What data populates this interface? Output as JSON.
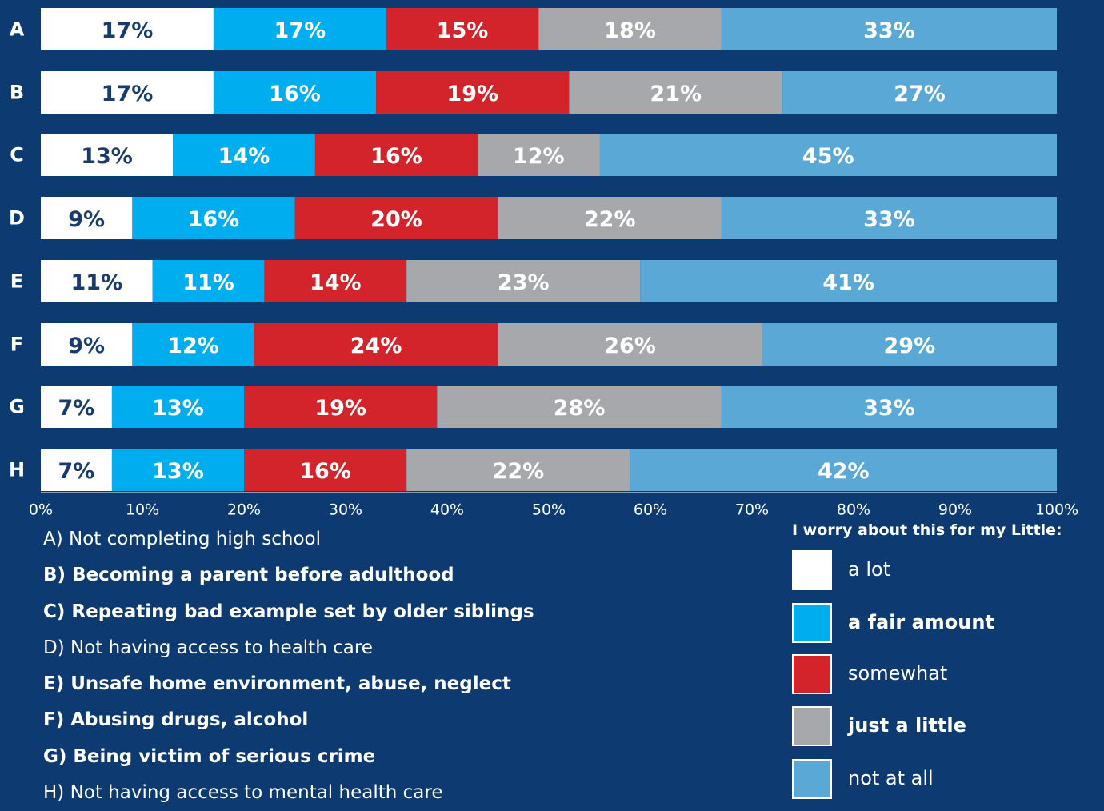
{
  "chart_data": {
    "type": "bar",
    "orientation": "horizontal",
    "stacked": true,
    "categories": [
      "A",
      "B",
      "C",
      "D",
      "E",
      "F",
      "G",
      "H"
    ],
    "series": [
      {
        "name": "a lot",
        "color": "#ffffff",
        "label_color": "#1a3b6e",
        "values": [
          17,
          17,
          13,
          9,
          11,
          9,
          7,
          7
        ]
      },
      {
        "name": "a fair amount",
        "color": "#00adef",
        "label_color": "#ffffff",
        "values": [
          17,
          16,
          14,
          16,
          11,
          12,
          13,
          13
        ]
      },
      {
        "name": "somewhat",
        "color": "#d3242b",
        "label_color": "#ffffff",
        "values": [
          15,
          19,
          16,
          20,
          14,
          24,
          19,
          16
        ]
      },
      {
        "name": "just a little",
        "color": "#a6a8ab",
        "label_color": "#ffffff",
        "values": [
          18,
          21,
          12,
          22,
          23,
          26,
          28,
          22
        ]
      },
      {
        "name": "not at all",
        "color": "#5aa8d6",
        "label_color": "#ffffff",
        "values": [
          33,
          27,
          45,
          33,
          41,
          29,
          33,
          42
        ]
      }
    ],
    "x_ticks": [
      "0%",
      "10%",
      "20%",
      "30%",
      "40%",
      "50%",
      "60%",
      "70%",
      "80%",
      "90%",
      "100%"
    ],
    "xlim": [
      0,
      100
    ],
    "grid": false,
    "legend_title": "I worry about this for my Little:",
    "legend_position": "bottom-right",
    "category_descriptions": [
      "A) Not completing high school",
      "B) Becoming a parent before adulthood",
      "C) Repeating bad example set by older siblings",
      "D) Not having access to health care",
      "E) Unsafe home environment, abuse, neglect",
      "F) Abusing drugs, alcohol",
      "G) Being victim of serious crime",
      "H) Not having access to mental health care"
    ]
  },
  "colors": {
    "background": "#0d3a70"
  }
}
